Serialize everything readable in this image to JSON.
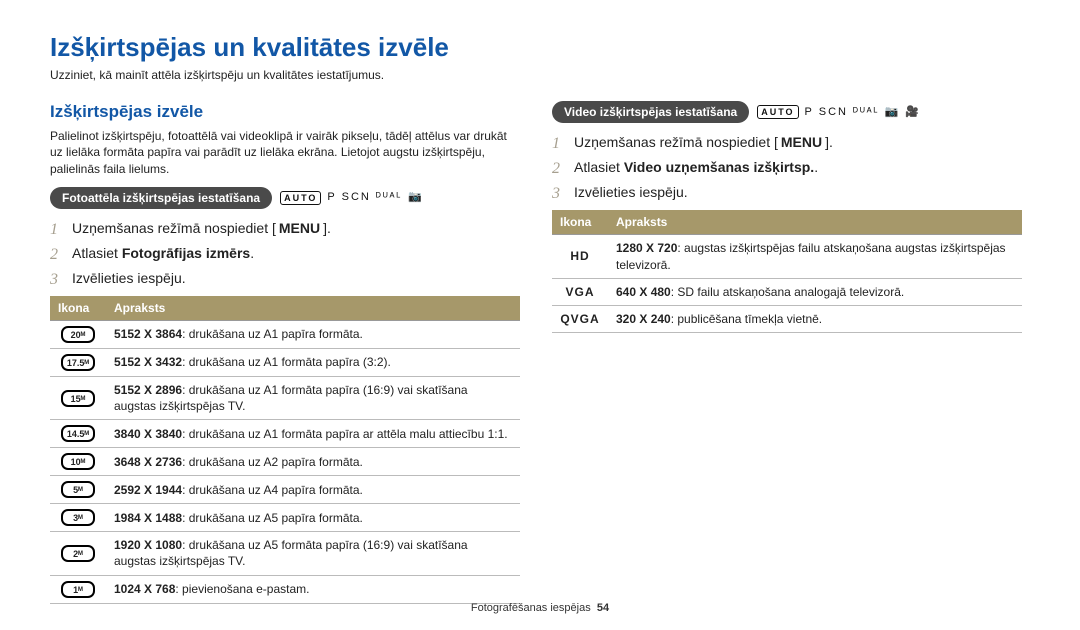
{
  "title": "Izšķirtspējas un kvalitātes izvēle",
  "intro": "Uzziniet, kā mainīt attēla izšķirtspēju un kvalitātes iestatījumus.",
  "left": {
    "heading": "Izšķirtspējas izvēle",
    "paragraph": "Palielinot izšķirtspēju, fotoattēlā vai videoklipā ir vairāk pikseļu, tādēļ attēlus var drukāt uz lielāka formāta papīra vai parādīt uz lielāka ekrāna. Lietojot augstu izšķirtspēju, palielinās faila lielums.",
    "pill": "Fotoattēla izšķirtspējas iestatīšana",
    "modes": {
      "auto": "AUTO",
      "rest": "P SCN ᴰᵁᴬᴸ"
    },
    "step1_pre": "Uzņemšanas režīmā nospiediet [",
    "step1_menu": "MENU",
    "step1_post": "].",
    "step2_pre": "Atlasiet ",
    "step2_bold": "Fotogrāfijas izmērs",
    "step2_post": ".",
    "step3": "Izvēlieties iespēju.",
    "table": {
      "headers": [
        "Ikona",
        "Apraksts"
      ],
      "rows": [
        {
          "icon": "20ᴹ",
          "bold": "5152 X 3864",
          "text": ": drukāšana uz A1 papīra formāta."
        },
        {
          "icon": "17.5ᴹ",
          "bold": "5152 X 3432",
          "text": ": drukāšana uz A1 formāta papīra (3:2)."
        },
        {
          "icon": "15ᴹ",
          "bold": "5152 X 2896",
          "text": ": drukāšana uz A1 formāta papīra (16:9) vai skatīšana augstas izšķirtspējas TV."
        },
        {
          "icon": "14.5ᴹ",
          "bold": "3840 X 3840",
          "text": ": drukāšana uz A1 formāta papīra ar attēla malu attiecību 1:1."
        },
        {
          "icon": "10ᴹ",
          "bold": "3648 X 2736",
          "text": ": drukāšana uz A2 papīra formāta."
        },
        {
          "icon": "5ᴹ",
          "bold": "2592 X 1944",
          "text": ": drukāšana uz A4 papīra formāta."
        },
        {
          "icon": "3ᴹ",
          "bold": "1984 X 1488",
          "text": ": drukāšana uz A5 papīra formāta."
        },
        {
          "icon": "2ᴹ",
          "bold": "1920 X 1080",
          "text": ": drukāšana uz A5 formāta papīra (16:9) vai skatīšana augstas izšķirtspējas TV."
        },
        {
          "icon": "1ᴹ",
          "bold": "1024 X 768",
          "text": ": pievienošana e-pastam."
        }
      ]
    }
  },
  "right": {
    "pill": "Video izšķirtspējas iestatīšana",
    "modes": {
      "auto": "AUTO",
      "rest": "P SCN ᴰᵁᴬᴸ 📷 🎥"
    },
    "step1_pre": "Uzņemšanas režīmā nospiediet [",
    "step1_menu": "MENU",
    "step1_post": "].",
    "step2_pre": "Atlasiet ",
    "step2_bold": "Video uzņemšanas izšķirtsp.",
    "step2_post": ".",
    "step3": "Izvēlieties iespēju.",
    "table": {
      "headers": [
        "Ikona",
        "Apraksts"
      ],
      "rows": [
        {
          "icon": "HD",
          "bold": "1280 X 720",
          "text": ": augstas izšķirtspējas failu atskaņošana augstas izšķirtspējas televizorā."
        },
        {
          "icon": "VGA",
          "bold": "640 X 480",
          "text": ": SD failu atskaņošana analogajā televizorā."
        },
        {
          "icon": "QVGA",
          "bold": "320 X 240",
          "text": ": publicēšana tīmekļa vietnē."
        }
      ]
    }
  },
  "footer": {
    "label": "Fotografēšanas iespējas",
    "page": "54"
  }
}
